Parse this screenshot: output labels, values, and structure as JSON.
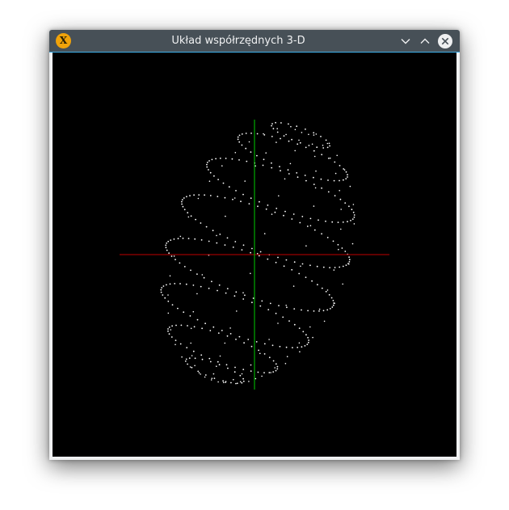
{
  "window": {
    "title": "Układ współrzędnych 3-D",
    "app_icon_letter": "X",
    "buttons": {
      "minimize": "chevron-down-icon",
      "maximize": "chevron-up-icon",
      "close": "close-icon"
    }
  },
  "viewport": {
    "background": "#000000",
    "x_axis_color": "#c00000",
    "y_axis_color": "#00cc00",
    "point_color": "#ffffff"
  }
}
